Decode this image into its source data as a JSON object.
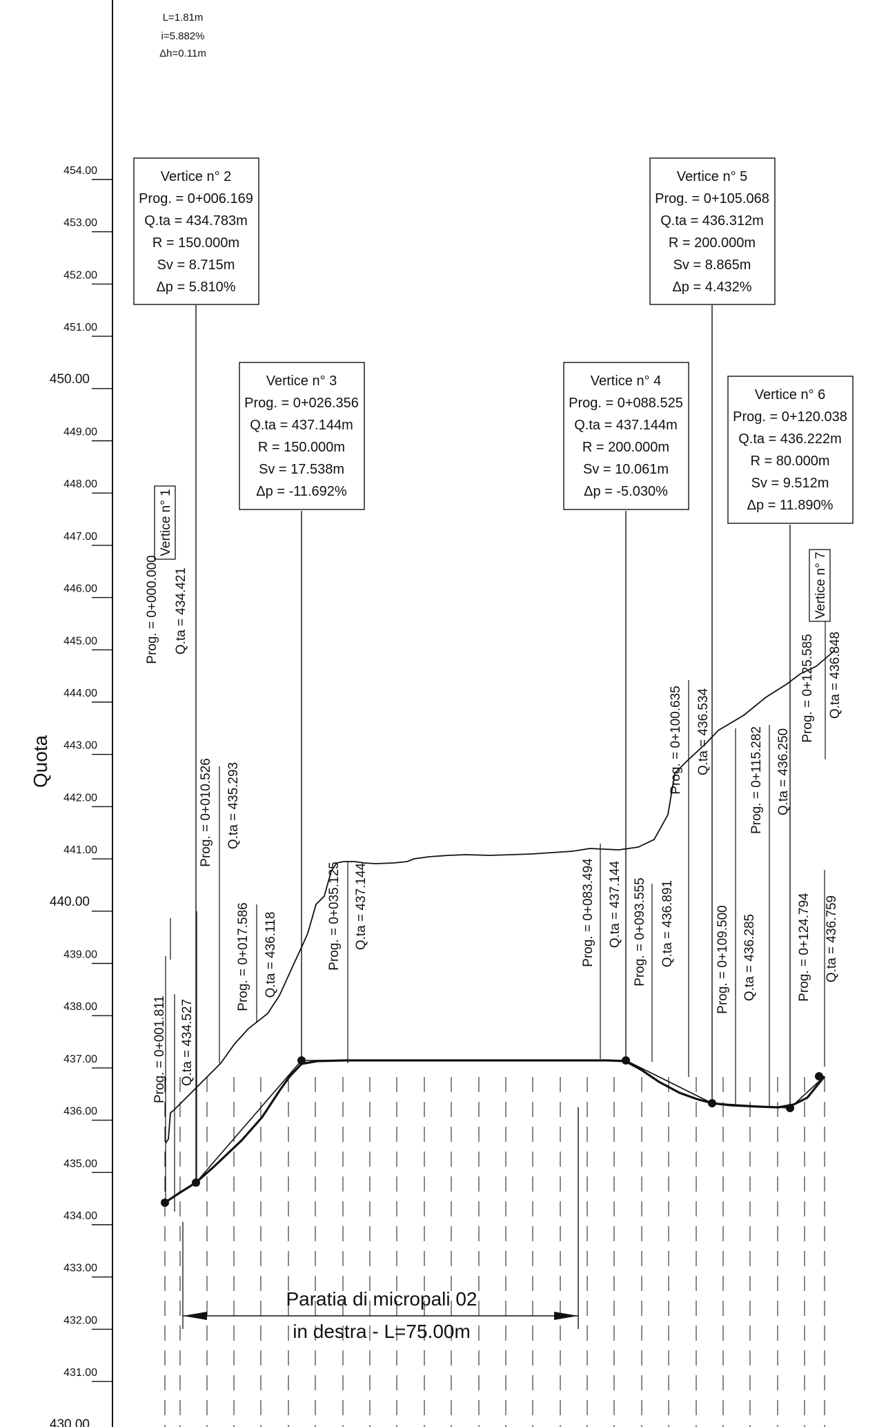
{
  "top_note": {
    "line1": "L=1.81m",
    "line2": "i=5.882%",
    "line3": "Δh=0.11m"
  },
  "axis": {
    "label": "Quota",
    "ticks": [
      "454.00",
      "453.00",
      "452.00",
      "451.00",
      "450.00",
      "449.00",
      "448.00",
      "447.00",
      "446.00",
      "445.00",
      "444.00",
      "443.00",
      "442.00",
      "441.00",
      "440.00",
      "439.00",
      "438.00",
      "437.00",
      "436.00",
      "435.00",
      "434.00",
      "433.00",
      "432.00",
      "431.00",
      "430.00"
    ],
    "major": [
      "450.00",
      "440.00",
      "430.00"
    ]
  },
  "vertices": {
    "v2": {
      "title": "Vertice n° 2",
      "prog": "Prog. = 0+006.169",
      "quota": "Q.ta = 434.783m",
      "r": "R = 150.000m",
      "sv": "Sv = 8.715m",
      "dp": "Δp = 5.810%"
    },
    "v3": {
      "title": "Vertice n° 3",
      "prog": "Prog. = 0+026.356",
      "quota": "Q.ta = 437.144m",
      "r": "R = 150.000m",
      "sv": "Sv = 17.538m",
      "dp": "Δp = -11.692%"
    },
    "v4": {
      "title": "Vertice n° 4",
      "prog": "Prog. = 0+088.525",
      "quota": "Q.ta = 437.144m",
      "r": "R = 200.000m",
      "sv": "Sv = 10.061m",
      "dp": "Δp = -5.030%"
    },
    "v5": {
      "title": "Vertice n° 5",
      "prog": "Prog. = 0+105.068",
      "quota": "Q.ta = 436.312m",
      "r": "R = 200.000m",
      "sv": "Sv = 8.865m",
      "dp": "Δp = 4.432%"
    },
    "v6": {
      "title": "Vertice n° 6",
      "prog": "Prog. = 0+120.038",
      "quota": "Q.ta = 436.222m",
      "r": "R = 80.000m",
      "sv": "Sv = 9.512m",
      "dp": "Δp = 11.890%"
    },
    "v1_label": "Vertice n° 1",
    "v7_label": "Vertice n° 7"
  },
  "stations": {
    "s1_prog": "Prog. = 0+000.000",
    "s1_quota": "Q.ta = 434.421",
    "s2_prog": "Prog. = 0+001.811",
    "s2_quota": "Q.ta = 434.527",
    "s3_prog": "Prog. = 0+010.526",
    "s3_quota": "Q.ta = 435.293",
    "s4_prog": "Prog. = 0+017.586",
    "s4_quota": "Q.ta = 436.118",
    "s5_prog": "Prog. = 0+035.125",
    "s5_quota": "Q.ta = 437.144",
    "s6_prog": "Prog. = 0+083.494",
    "s6_quota": "Q.ta = 437.144",
    "s7_prog": "Prog. = 0+093.555",
    "s7_quota": "Q.ta = 436.891",
    "s8_prog": "Prog. = 0+100.635",
    "s8_quota": "Q.ta = 436.534",
    "s9_prog": "Prog. = 0+109.500",
    "s9_quota": "Q.ta = 436.285",
    "s10_prog": "Prog. = 0+115.282",
    "s10_quota": "Q.ta = 436.250",
    "s11_prog": "Prog. = 0+124.794",
    "s11_quota": "Q.ta = 436.759",
    "s12_prog": "Prog. = 0+125.585",
    "s12_quota": "Q.ta = 436.848"
  },
  "paratia": {
    "line1": "Paratia di micropali 02",
    "line2": "in destra  -  L=75.00m"
  }
}
